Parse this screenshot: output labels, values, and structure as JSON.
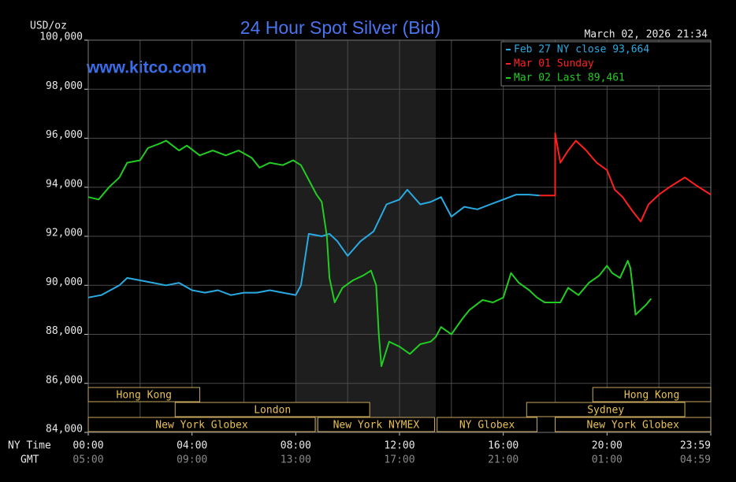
{
  "chart_data": {
    "type": "line",
    "title": "24 Hour Spot Silver (Bid)",
    "y_label": "USD/oz",
    "timestamp": "March 02, 2026 21:34",
    "watermark": "www.kitco.com",
    "x_row_label": "NY Time",
    "x2_row_label": "GMT",
    "xlim": [
      0,
      24
    ],
    "xticks": [
      {
        "value": 0,
        "label": "00:00"
      },
      {
        "value": 4,
        "label": "04:00"
      },
      {
        "value": 8,
        "label": "08:00"
      },
      {
        "value": 12,
        "label": "12:00"
      },
      {
        "value": 16,
        "label": "16:00"
      },
      {
        "value": 20,
        "label": "20:00"
      },
      {
        "value": 24,
        "label": "23:59"
      }
    ],
    "gmt_labels": [
      "05:00",
      "09:00",
      "13:00",
      "17:00",
      "21:00",
      "01:00",
      "04:59"
    ],
    "xgrid": [
      0,
      2,
      4,
      6,
      8,
      10,
      12,
      14,
      16,
      18,
      20,
      22,
      24
    ],
    "ylim": [
      84,
      100
    ],
    "yticks": [
      {
        "value": 84,
        "label": "84,000"
      },
      {
        "value": 86,
        "label": "86,000"
      },
      {
        "value": 88,
        "label": "88,000"
      },
      {
        "value": 90,
        "label": "90,000"
      },
      {
        "value": 92,
        "label": "92,000"
      },
      {
        "value": 94,
        "label": "94,000"
      },
      {
        "value": 96,
        "label": "96,000"
      },
      {
        "value": 98,
        "label": "98,000"
      },
      {
        "value": 100,
        "label": "100,000"
      }
    ],
    "grid": true,
    "shaded_hours": [
      8,
      13.4
    ],
    "legend": "top-right",
    "series": [
      {
        "name": "Feb 27 NY close 93,664",
        "color": "#29abe2",
        "x": [
          0,
          0.5,
          1.2,
          1.5,
          2,
          2.5,
          3,
          3.5,
          4,
          4.5,
          5,
          5.5,
          6,
          6.5,
          7,
          7.5,
          8,
          8.2,
          8.5,
          9,
          9.3,
          9.6,
          10,
          10.5,
          11,
          11.5,
          12,
          12.3,
          12.8,
          13.2,
          13.6,
          14,
          14.5,
          15,
          15.5,
          16,
          16.5,
          17,
          17.4
        ],
        "values": [
          89.5,
          89.6,
          90.0,
          90.3,
          90.2,
          90.1,
          90.0,
          90.1,
          89.8,
          89.7,
          89.8,
          89.6,
          89.7,
          89.7,
          89.8,
          89.7,
          89.6,
          90.0,
          92.1,
          92.0,
          92.1,
          91.8,
          91.2,
          91.8,
          92.2,
          93.3,
          93.5,
          93.9,
          93.3,
          93.4,
          93.6,
          92.8,
          93.2,
          93.1,
          93.3,
          93.5,
          93.7,
          93.7,
          93.66
        ]
      },
      {
        "name": "Mar 01 Sunday",
        "color": "#ff2020",
        "x": [
          17.4,
          18.0,
          18.0,
          18.2,
          18.5,
          18.8,
          19.2,
          19.6,
          20,
          20.3,
          20.6,
          21,
          21.3,
          21.6,
          22,
          22.4,
          22.7,
          23,
          23.4,
          23.7,
          24
        ],
        "values": [
          93.66,
          93.66,
          96.2,
          95.0,
          95.5,
          95.9,
          95.5,
          95.0,
          94.7,
          93.9,
          93.6,
          93.0,
          92.6,
          93.3,
          93.7,
          94.0,
          94.2,
          94.4,
          94.1,
          93.9,
          93.7
        ]
      },
      {
        "name": "Mar 02 Last 89,461",
        "color": "#22cc22",
        "x": [
          0,
          0.4,
          0.8,
          1.2,
          1.5,
          2,
          2.3,
          2.8,
          3,
          3.5,
          3.8,
          4.3,
          4.8,
          5.3,
          5.8,
          6.3,
          6.6,
          7,
          7.5,
          7.9,
          8.2,
          8.5,
          8.8,
          9.0,
          9.2,
          9.3,
          9.5,
          9.8,
          10.2,
          10.6,
          10.9,
          11.1,
          11.2,
          11.3,
          11.6,
          12,
          12.4,
          12.8,
          13.2,
          13.4,
          13.6,
          14,
          14.4,
          14.7,
          15.2,
          15.6,
          16,
          16.3,
          16.6,
          17,
          17.3,
          17.6,
          18.0,
          18.2,
          18.5,
          18.9,
          19.3,
          19.7,
          20.0,
          20.2,
          20.5,
          20.8,
          20.9,
          21.0,
          21.1,
          21.3,
          21.5,
          21.7
        ],
        "values": [
          93.6,
          93.5,
          94.0,
          94.4,
          95.0,
          95.1,
          95.6,
          95.8,
          95.9,
          95.5,
          95.7,
          95.3,
          95.5,
          95.3,
          95.5,
          95.2,
          94.8,
          95.0,
          94.9,
          95.1,
          94.9,
          94.3,
          93.7,
          93.4,
          92.0,
          90.3,
          89.3,
          89.9,
          90.2,
          90.4,
          90.6,
          90.0,
          88.0,
          86.7,
          87.7,
          87.5,
          87.2,
          87.6,
          87.7,
          87.9,
          88.3,
          88.0,
          88.6,
          89.0,
          89.4,
          89.3,
          89.5,
          90.5,
          90.1,
          89.8,
          89.5,
          89.3,
          89.3,
          89.3,
          89.9,
          89.6,
          90.1,
          90.4,
          90.8,
          90.5,
          90.3,
          91.0,
          90.7,
          89.8,
          88.8,
          89.0,
          89.2,
          89.46
        ]
      }
    ],
    "sessions": [
      [
        {
          "label": "Hong Kong",
          "start": 0,
          "end": 4.3
        },
        {
          "label": "Hong Kong",
          "start": 19.45,
          "end": 24
        }
      ],
      [
        {
          "label": "London",
          "start": 3.35,
          "end": 10.85
        },
        {
          "label": "Sydney",
          "start": 16.9,
          "end": 23.0
        }
      ],
      [
        {
          "label": "New York Globex",
          "start": 0,
          "end": 8.75
        },
        {
          "label": "New York NYMEX",
          "start": 8.85,
          "end": 13.35
        },
        {
          "label": "NY Globex",
          "start": 13.45,
          "end": 17.3
        },
        {
          "label": "New York Globex",
          "start": 18.0,
          "end": 24
        }
      ]
    ]
  }
}
